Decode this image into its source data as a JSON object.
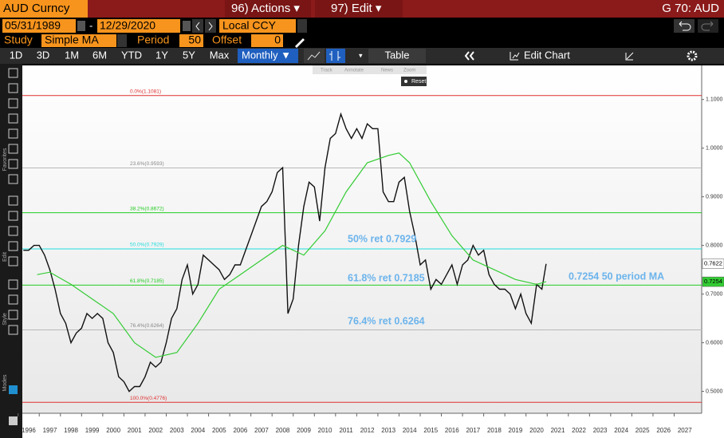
{
  "toolbar": {
    "security": "AUD Curncy",
    "actions": "96) Actions ▾",
    "edit": "97) Edit ▾",
    "function": "G 70: AUD",
    "start_date": "05/31/1989",
    "dash": "-",
    "end_date": "12/29/2020",
    "currency": "Local CCY",
    "study_label": "Study",
    "study": "Simple MA",
    "period_label": "Period",
    "period": "50",
    "offset_label": "Offset",
    "offset": "0",
    "ranges": [
      "1D",
      "3D",
      "1M",
      "6M",
      "YTD",
      "1Y",
      "5Y",
      "Max"
    ],
    "frequency": "Monthly ▼",
    "table": "Table",
    "edit_chart": "Edit Chart",
    "tools": [
      "Track",
      "Annotate",
      "News",
      "Zoom"
    ],
    "reset": "Reset",
    "side_labels": [
      "Favorites",
      "Edit",
      "Style",
      "Modes"
    ]
  },
  "chart_data": {
    "type": "line",
    "xlim": [
      1996.2,
      2028.3
    ],
    "xticks": [
      1996,
      1997,
      1998,
      1999,
      2000,
      2001,
      2002,
      2003,
      2004,
      2005,
      2006,
      2007,
      2008,
      2009,
      2010,
      2011,
      2012,
      2013,
      2014,
      2015,
      2016,
      2017,
      2018,
      2019,
      2020,
      2021,
      2022,
      2023,
      2024,
      2025,
      2026,
      2027
    ],
    "ylim": [
      0.455,
      1.17
    ],
    "yticks": [
      {
        "value": 0.5,
        "label": "0.5000"
      },
      {
        "value": 0.6,
        "label": "0.6000"
      },
      {
        "value": 0.7,
        "label": "0.7000"
      },
      {
        "value": 0.8,
        "label": "0.8000"
      },
      {
        "value": 0.9,
        "label": "0.9000"
      },
      {
        "value": 1.0,
        "label": "1.0000"
      },
      {
        "value": 1.1,
        "label": "1.1000"
      }
    ],
    "series": [
      {
        "name": "AUD Curncy",
        "color": "#111111",
        "x": [
          1996.25,
          1996.5,
          1996.75,
          1997,
          1997.25,
          1997.5,
          1997.75,
          1998,
          1998.25,
          1998.5,
          1998.75,
          1999,
          1999.25,
          1999.5,
          1999.75,
          2000,
          2000.25,
          2000.5,
          2000.75,
          2001,
          2001.25,
          2001.5,
          2001.75,
          2002,
          2002.25,
          2002.5,
          2002.75,
          2003,
          2003.25,
          2003.5,
          2003.75,
          2004,
          2004.25,
          2004.5,
          2004.75,
          2005,
          2005.25,
          2005.5,
          2005.75,
          2006,
          2006.25,
          2006.5,
          2006.75,
          2007,
          2007.25,
          2007.5,
          2007.75,
          2008,
          2008.25,
          2008.5,
          2008.75,
          2009,
          2009.25,
          2009.5,
          2009.75,
          2010,
          2010.25,
          2010.5,
          2010.75,
          2011,
          2011.25,
          2011.5,
          2011.75,
          2012,
          2012.25,
          2012.5,
          2012.75,
          2013,
          2013.25,
          2013.5,
          2013.75,
          2014,
          2014.25,
          2014.5,
          2014.75,
          2015,
          2015.25,
          2015.5,
          2015.75,
          2016,
          2016.25,
          2016.5,
          2016.75,
          2017,
          2017.25,
          2017.5,
          2017.75,
          2018,
          2018.25,
          2018.5,
          2018.75,
          2019,
          2019.25,
          2019.5,
          2019.75,
          2020,
          2020.25,
          2020.5,
          2020.75,
          2020.95
        ],
        "values": [
          0.79,
          0.79,
          0.8,
          0.8,
          0.78,
          0.75,
          0.71,
          0.66,
          0.64,
          0.6,
          0.62,
          0.63,
          0.66,
          0.65,
          0.66,
          0.65,
          0.6,
          0.58,
          0.53,
          0.52,
          0.5,
          0.51,
          0.51,
          0.53,
          0.56,
          0.55,
          0.56,
          0.6,
          0.65,
          0.67,
          0.73,
          0.76,
          0.7,
          0.72,
          0.78,
          0.77,
          0.76,
          0.75,
          0.73,
          0.74,
          0.76,
          0.76,
          0.79,
          0.82,
          0.85,
          0.88,
          0.89,
          0.91,
          0.95,
          0.96,
          0.66,
          0.69,
          0.8,
          0.88,
          0.93,
          0.92,
          0.85,
          0.96,
          1.02,
          1.03,
          1.07,
          1.04,
          1.02,
          1.04,
          1.02,
          1.05,
          1.04,
          1.04,
          0.91,
          0.89,
          0.89,
          0.93,
          0.94,
          0.87,
          0.82,
          0.76,
          0.77,
          0.71,
          0.73,
          0.72,
          0.74,
          0.76,
          0.72,
          0.76,
          0.77,
          0.8,
          0.78,
          0.79,
          0.74,
          0.72,
          0.71,
          0.71,
          0.7,
          0.67,
          0.7,
          0.66,
          0.64,
          0.72,
          0.71,
          0.762
        ]
      },
      {
        "name": "Simple MA",
        "color": "#33cc33",
        "x": [
          1996.9,
          1997.5,
          1998.5,
          1999.5,
          2000.5,
          2001.5,
          2002.5,
          2003.5,
          2004.5,
          2005.5,
          2006.5,
          2007.5,
          2008.5,
          2009.5,
          2010.5,
          2011.5,
          2012.5,
          2013.5,
          2014.0,
          2014.5,
          2015.5,
          2016.5,
          2017.5,
          2018.5,
          2019.5,
          2020.5,
          2020.95
        ],
        "values": [
          0.74,
          0.745,
          0.72,
          0.69,
          0.66,
          0.6,
          0.57,
          0.58,
          0.64,
          0.71,
          0.74,
          0.77,
          0.8,
          0.78,
          0.83,
          0.91,
          0.97,
          0.985,
          0.99,
          0.97,
          0.89,
          0.82,
          0.77,
          0.75,
          0.73,
          0.72,
          0.7254
        ]
      }
    ],
    "fib_levels": [
      {
        "label": "0.0%(1.1081)",
        "value": 1.1081,
        "color": "#e03030"
      },
      {
        "label": "23.6%(0.9593)",
        "value": 0.9593,
        "color": "#b8b8b8"
      },
      {
        "label": "38.2%(0.8672)",
        "value": 0.8672,
        "color": "#22cc22"
      },
      {
        "label": "50.0%(0.7929)",
        "value": 0.7929,
        "color": "#22dddd"
      },
      {
        "label": "61.8%(0.7185)",
        "value": 0.7185,
        "color": "#22cc22"
      },
      {
        "label": "76.4%(0.6264)",
        "value": 0.6264,
        "color": "#b8b8b8"
      },
      {
        "label": "100.0%(0.4776)",
        "value": 0.4776,
        "color": "#e03030"
      }
    ],
    "annotations": [
      "50% ret 0.7929",
      "61.8% ret 0.7185",
      "76.4% ret 0.6264",
      "0.7254 50 period MA"
    ],
    "price_tags": [
      {
        "value": 0.7622,
        "label": "0.7622",
        "color": "#ffffff"
      },
      {
        "value": 0.7254,
        "label": "0.7254",
        "color": "#33cc33"
      }
    ]
  }
}
